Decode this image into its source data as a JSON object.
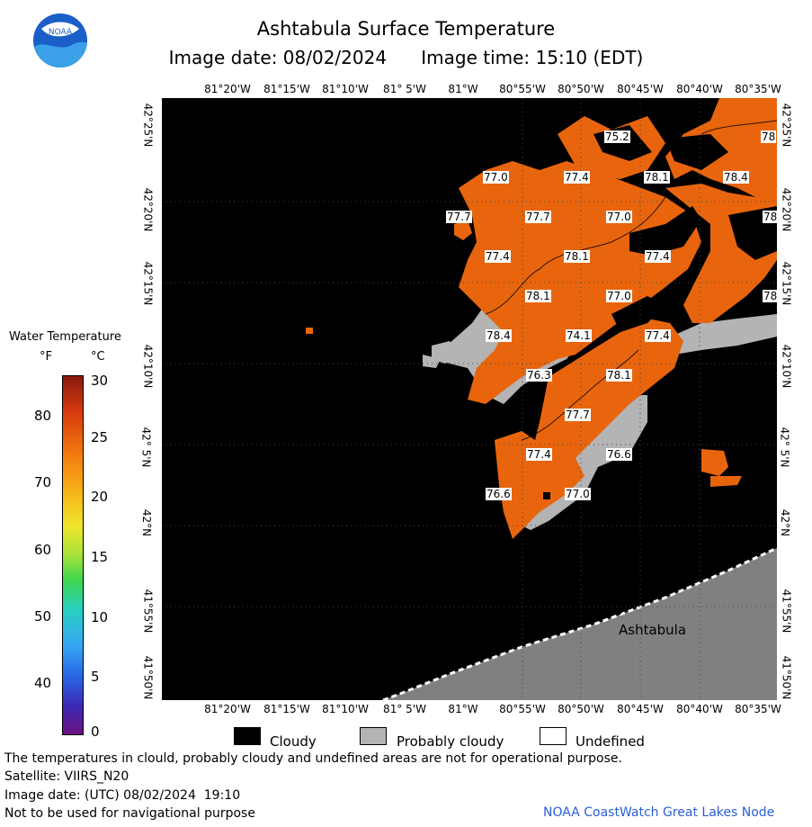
{
  "header": {
    "title": "Ashtabula Surface Temperature",
    "image_date_label": "Image date: 08/02/2024",
    "image_time_label": "Image time: 15:10 (EDT)",
    "logo_text": "NOAA"
  },
  "map": {
    "lon_labels": [
      "81°20'W",
      "81°15'W",
      "81°10'W",
      "81° 5'W",
      "81°W",
      "80°55'W",
      "80°50'W",
      "80°45'W",
      "80°40'W",
      "80°35'W"
    ],
    "lat_labels": [
      "42°25'N",
      "42°20'N",
      "42°15'N",
      "42°10'N",
      "42° 5'N",
      "42°N",
      "41°55'N",
      "41°50'N"
    ],
    "place_label": "Ashtabula",
    "temperature_labels": [
      "75.2",
      "78",
      "77.0",
      "77.4",
      "78.1",
      "78.4",
      "77.7",
      "77.7",
      "77.0",
      "78",
      "77.4",
      "78.1",
      "77.4",
      "78.1",
      "77.0",
      "78",
      "78.4",
      "74.1",
      "77.4",
      "76.3",
      "78.1",
      "77.7",
      "77.4",
      "76.6",
      "76.6",
      "77.0"
    ],
    "colors": {
      "water_warm": "#e8650e",
      "cloud": "#000000",
      "probably_cloudy": "#b4b4b4",
      "land": "#808080"
    }
  },
  "legend": {
    "title": "Water Temperature",
    "unit_f": "°F",
    "unit_c": "°C",
    "f_ticks": [
      "80",
      "70",
      "60",
      "50",
      "40"
    ],
    "c_ticks": [
      "30",
      "25",
      "20",
      "15",
      "10",
      "5",
      "0"
    ]
  },
  "key": {
    "cloudy": "Cloudy",
    "probably_cloudy": "Probably cloudy",
    "undefined": "Undefined"
  },
  "footer": {
    "disclaimer": "The temperatures in clould, probably cloudy and undefined areas are not for operational purpose.",
    "satellite": "Satellite: VIIRS_N20",
    "utc_date": "Image date: (UTC) 08/02/2024  19:10",
    "nav_warning": "Not to be used for navigational purpose",
    "credit": "NOAA CoastWatch Great Lakes Node"
  }
}
